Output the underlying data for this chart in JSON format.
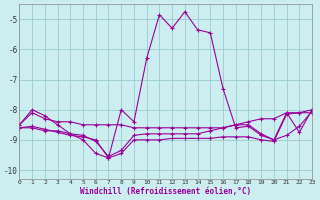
{
  "xlabel": "Windchill (Refroidissement éolien,°C)",
  "background_color": "#cceef0",
  "line_color": "#990099",
  "grid_color": "#99cccc",
  "xlim": [
    0,
    23
  ],
  "ylim": [
    -10.3,
    -4.5
  ],
  "yticks": [
    -10,
    -9,
    -8,
    -7,
    -6,
    -5
  ],
  "xticks": [
    0,
    1,
    2,
    3,
    4,
    5,
    6,
    7,
    8,
    9,
    10,
    11,
    12,
    13,
    14,
    15,
    16,
    17,
    18,
    19,
    20,
    21,
    22,
    23
  ],
  "hours": [
    0,
    1,
    2,
    3,
    4,
    5,
    6,
    7,
    8,
    9,
    10,
    11,
    12,
    13,
    14,
    15,
    16,
    17,
    18,
    19,
    20,
    21,
    22,
    23
  ],
  "series": [
    [
      -8.5,
      -8.1,
      -8.3,
      -8.4,
      -8.4,
      -8.5,
      -8.5,
      -8.5,
      -8.5,
      -8.6,
      -8.6,
      -8.6,
      -8.6,
      -8.6,
      -8.6,
      -8.6,
      -8.6,
      -8.5,
      -8.4,
      -8.3,
      -8.3,
      -8.1,
      -8.1,
      -8.0
    ],
    [
      -8.6,
      -8.6,
      -8.7,
      -8.7,
      -8.8,
      -8.85,
      -9.05,
      -9.55,
      -9.35,
      -8.85,
      -8.8,
      -8.8,
      -8.8,
      -8.8,
      -8.8,
      -8.7,
      -8.6,
      -8.5,
      -8.5,
      -8.8,
      -9.0,
      -8.85,
      -8.55,
      -8.05
    ],
    [
      -8.5,
      -8.0,
      -8.2,
      -8.5,
      -8.8,
      -9.0,
      -9.45,
      -9.6,
      -8.0,
      -8.4,
      -6.3,
      -4.85,
      -5.3,
      -4.75,
      -5.35,
      -5.45,
      -7.3,
      -8.6,
      -8.55,
      -8.85,
      -9.0,
      -8.1,
      -8.75,
      -8.0
    ],
    [
      -8.6,
      -8.55,
      -8.65,
      -8.75,
      -8.85,
      -8.9,
      -9.0,
      -9.6,
      -9.45,
      -9.0,
      -9.0,
      -9.0,
      -8.95,
      -8.95,
      -8.95,
      -8.95,
      -8.9,
      -8.9,
      -8.9,
      -9.0,
      -9.05,
      -8.15,
      -8.1,
      -8.1
    ]
  ]
}
